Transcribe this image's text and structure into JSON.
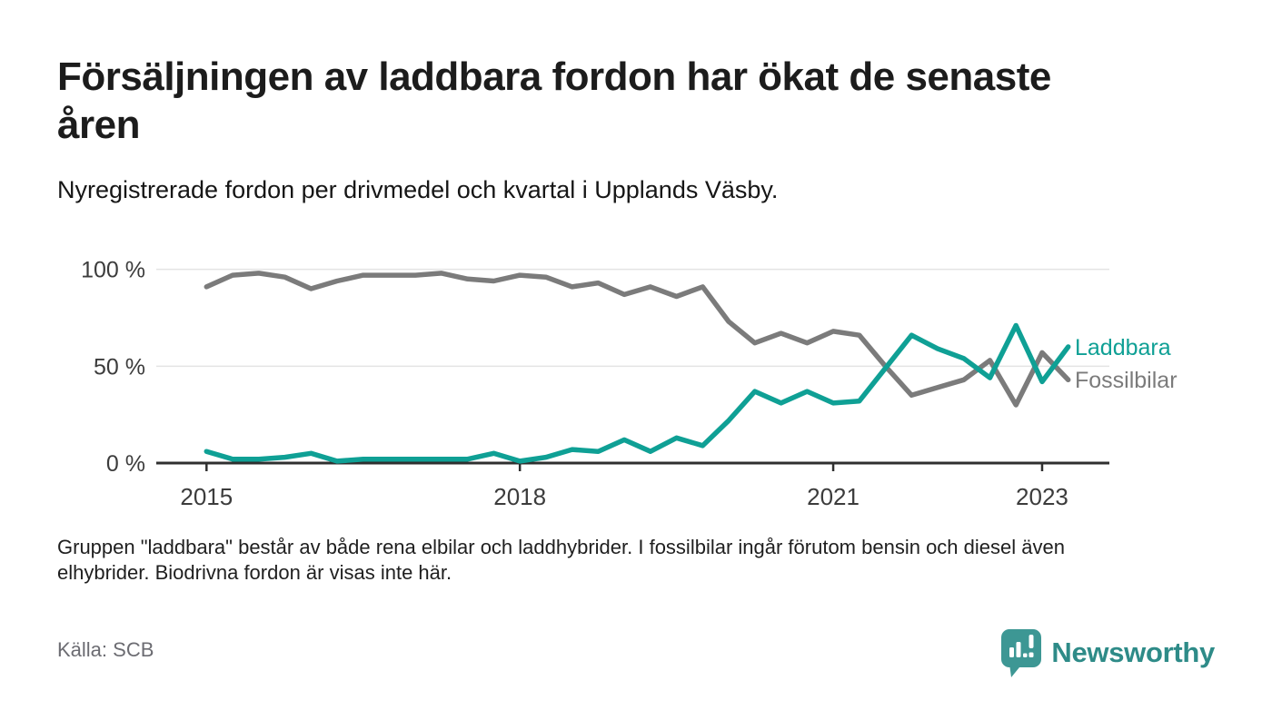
{
  "header": {
    "title": "Försäljningen av laddbara fordon har ökat de senaste åren",
    "title_lines": [
      "Försäljningen av laddbara fordon har ökat de senaste",
      "åren"
    ],
    "subtitle": "Nyregistrerade fordon per drivmedel och kvartal i Upplands Väsby."
  },
  "chart_data": {
    "type": "line",
    "title": "",
    "xlabel": "",
    "ylabel": "",
    "unit": "%",
    "ylim": [
      0,
      100
    ],
    "grid": "horizontal",
    "legend_position": "right-of-line-ends",
    "y_ticks": [
      {
        "label": "0 %",
        "value": 0
      },
      {
        "label": "50 %",
        "value": 50
      },
      {
        "label": "100 %",
        "value": 100
      }
    ],
    "x_ticks": [
      {
        "label": "2015",
        "index": 0
      },
      {
        "label": "2018",
        "index": 12
      },
      {
        "label": "2021",
        "index": 24
      },
      {
        "label": "2023",
        "index": 32
      }
    ],
    "categories": [
      "2015 Q1",
      "2015 Q2",
      "2015 Q3",
      "2015 Q4",
      "2016 Q1",
      "2016 Q2",
      "2016 Q3",
      "2016 Q4",
      "2017 Q1",
      "2017 Q2",
      "2017 Q3",
      "2017 Q4",
      "2018 Q1",
      "2018 Q2",
      "2018 Q3",
      "2018 Q4",
      "2019 Q1",
      "2019 Q2",
      "2019 Q3",
      "2019 Q4",
      "2020 Q1",
      "2020 Q2",
      "2020 Q3",
      "2020 Q4",
      "2021 Q1",
      "2021 Q2",
      "2021 Q3",
      "2021 Q4",
      "2022 Q1",
      "2022 Q2",
      "2022 Q3",
      "2022 Q4",
      "2023 Q1",
      "2023 Q2"
    ],
    "series": [
      {
        "name": "Fossilbilar",
        "color": "#7b7b7b",
        "values": [
          91,
          97,
          98,
          96,
          90,
          94,
          97,
          97,
          97,
          98,
          95,
          94,
          97,
          96,
          91,
          93,
          87,
          91,
          86,
          91,
          73,
          62,
          67,
          62,
          68,
          66,
          50,
          35,
          39,
          43,
          53,
          30,
          57,
          43
        ]
      },
      {
        "name": "Laddbara",
        "color": "#0fa095",
        "values": [
          6,
          2,
          2,
          3,
          5,
          1,
          2,
          2,
          2,
          2,
          2,
          5,
          1,
          3,
          7,
          6,
          12,
          6,
          13,
          9,
          22,
          37,
          31,
          37,
          31,
          32,
          49,
          66,
          59,
          54,
          44,
          71,
          42,
          60
        ]
      }
    ]
  },
  "footnote": {
    "lines": [
      "Gruppen \"laddbara\" består av både rena elbilar och laddhybrider. I fossilbilar ingår förutom bensin och diesel även",
      "elhybrider. Biodrivna fordon är visas inte här."
    ]
  },
  "source": {
    "label": "Källa: SCB"
  },
  "logo": {
    "text": "Newsworthy",
    "icon_color": "#3d9794",
    "text_color": "#2e8b88"
  },
  "colors": {
    "axis": "#2f2f2f",
    "gridline": "#e4e4e4",
    "tick_label": "#3c3c3c"
  }
}
